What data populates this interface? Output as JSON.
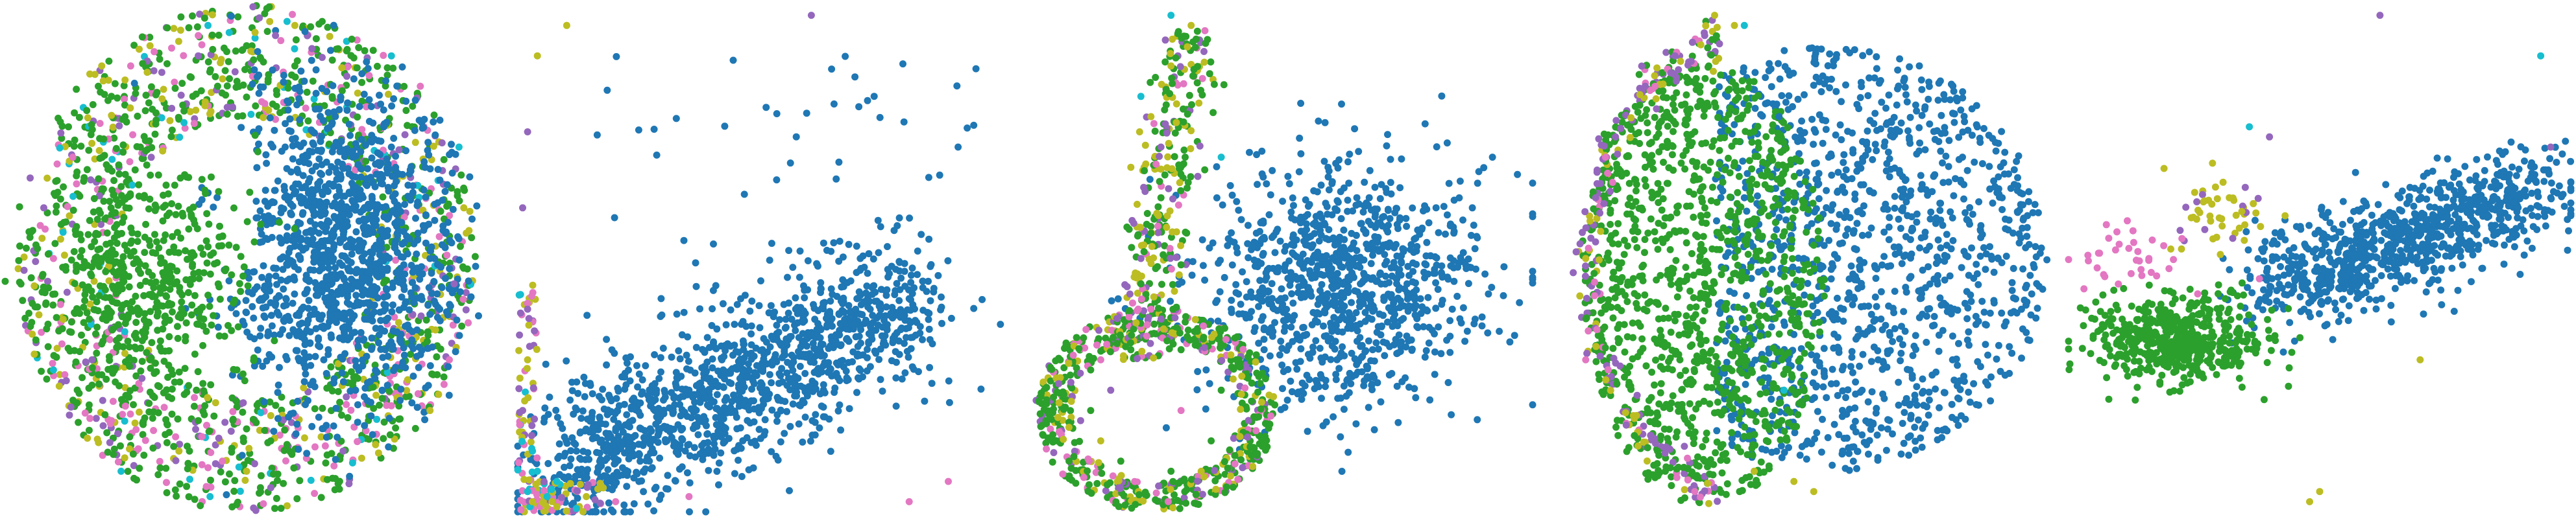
{
  "figure": {
    "background": "#ffffff",
    "panel_count": 5
  },
  "palette": {
    "blue": "#1f77b4",
    "green": "#2ca02c",
    "purple": "#9467bd",
    "pink": "#e377c2",
    "olive": "#bcbd22",
    "cyan": "#17becf"
  },
  "chart_data": [
    {
      "type": "scatter",
      "panel": 1,
      "title": "",
      "xlabel": "",
      "ylabel": "",
      "axes_visible": false,
      "grid": false,
      "legend": "none",
      "xlim": [
        0,
        100
      ],
      "ylim": [
        0,
        100
      ],
      "series": [
        {
          "color": "#1f77b4",
          "shape": "disk with two elongated vertical holes on its left side",
          "points": [
            [
              59,
              52
            ],
            [
              70,
              60
            ],
            [
              78,
              48
            ],
            [
              64,
              40
            ],
            [
              72,
              70
            ],
            [
              84,
              62
            ],
            [
              62,
              64
            ],
            [
              75,
              38
            ],
            [
              88,
              50
            ],
            [
              68,
              50
            ],
            [
              80,
              72
            ],
            [
              58,
              72
            ],
            [
              66,
              30
            ],
            [
              90,
              40
            ],
            [
              52,
              58
            ]
          ]
        },
        {
          "color": "#2ca02c",
          "shape": "ring-like annulus surrounding the blue disk",
          "points": [
            [
              20,
              50
            ],
            [
              30,
              30
            ],
            [
              28,
              72
            ],
            [
              40,
              18
            ],
            [
              44,
              84
            ],
            [
              55,
              14
            ],
            [
              25,
              60
            ],
            [
              35,
              45
            ],
            [
              48,
              28
            ],
            [
              15,
              40
            ],
            [
              22,
              82
            ],
            [
              60,
              88
            ],
            [
              38,
              66
            ],
            [
              18,
              25
            ],
            [
              50,
              92
            ]
          ]
        },
        {
          "color": "#e377c2",
          "shape": "scattered in outer ring",
          "points": [
            [
              10,
              50
            ],
            [
              22,
              18
            ],
            [
              26,
              88
            ],
            [
              45,
              10
            ],
            [
              92,
              30
            ],
            [
              40,
              94
            ],
            [
              14,
              70
            ],
            [
              86,
              84
            ]
          ]
        },
        {
          "color": "#bcbd22",
          "shape": "scattered in outer ring",
          "points": [
            [
              12,
              38
            ],
            [
              20,
              88
            ],
            [
              50,
              8
            ],
            [
              95,
              60
            ],
            [
              36,
              12
            ],
            [
              30,
              92
            ],
            [
              88,
              20
            ],
            [
              60,
              96
            ]
          ]
        },
        {
          "color": "#9467bd",
          "shape": "scattered in outer ring",
          "points": [
            [
              8,
              60
            ],
            [
              18,
              30
            ],
            [
              40,
              90
            ],
            [
              70,
              12
            ],
            [
              93,
              45
            ],
            [
              56,
              94
            ]
          ]
        },
        {
          "color": "#17becf",
          "shape": "sparse outer ring",
          "points": [
            [
              10,
              28
            ],
            [
              42,
              96
            ],
            [
              80,
              90
            ],
            [
              94,
              72
            ],
            [
              24,
              8
            ]
          ]
        }
      ]
    },
    {
      "type": "scatter",
      "panel": 2,
      "title": "",
      "xlabel": "",
      "ylabel": "",
      "axes_visible": false,
      "grid": false,
      "legend": "none",
      "xlim": [
        0,
        100
      ],
      "ylim": [
        0,
        100
      ],
      "series": [
        {
          "color": "#1f77b4",
          "shape": "diagonal band rising from lower-left to upper-right",
          "points": [
            [
              12,
              12
            ],
            [
              20,
              16
            ],
            [
              28,
              20
            ],
            [
              35,
              24
            ],
            [
              42,
              28
            ],
            [
              50,
              32
            ],
            [
              56,
              38
            ],
            [
              62,
              44
            ],
            [
              70,
              50
            ],
            [
              78,
              58
            ],
            [
              84,
              66
            ],
            [
              90,
              72
            ],
            [
              25,
              10
            ],
            [
              45,
              22
            ],
            [
              60,
              30
            ]
          ]
        },
        {
          "color": "#17becf",
          "shape": "clustered at lower-left corner",
          "points": [
            [
              2,
              4
            ],
            [
              4,
              8
            ],
            [
              6,
              3
            ],
            [
              3,
              12
            ],
            [
              8,
              6
            ]
          ]
        },
        {
          "color": "#bcbd22",
          "shape": "along bottom and left edge, few outliers at top",
          "points": [
            [
              3,
              2
            ],
            [
              8,
              1
            ],
            [
              14,
              3
            ],
            [
              2,
              30
            ],
            [
              10,
              96
            ],
            [
              4,
              90
            ]
          ]
        },
        {
          "color": "#9467bd",
          "shape": "along left edge",
          "points": [
            [
              1,
              20
            ],
            [
              2,
              40
            ],
            [
              1,
              60
            ],
            [
              2,
              75
            ],
            [
              60,
              98
            ]
          ]
        },
        {
          "color": "#e377c2",
          "shape": "along bottom edge",
          "points": [
            [
              20,
              2
            ],
            [
              35,
              3
            ],
            [
              80,
              2
            ],
            [
              88,
              6
            ]
          ]
        }
      ]
    },
    {
      "type": "scatter",
      "panel": 3,
      "title": "",
      "xlabel": "",
      "ylabel": "",
      "axes_visible": false,
      "grid": false,
      "legend": "none",
      "xlim": [
        0,
        100
      ],
      "ylim": [
        0,
        100
      ],
      "series": [
        {
          "color": "#1f77b4",
          "shape": "broad cloud extending to the right",
          "points": [
            [
              40,
              40
            ],
            [
              50,
              44
            ],
            [
              60,
              48
            ],
            [
              70,
              52
            ],
            [
              78,
              56
            ],
            [
              88,
              60
            ],
            [
              55,
              35
            ],
            [
              65,
              62
            ],
            [
              75,
              45
            ],
            [
              45,
              55
            ],
            [
              84,
              40
            ],
            [
              92,
              70
            ],
            [
              35,
              28
            ],
            [
              58,
              58
            ],
            [
              68,
              38
            ]
          ]
        },
        {
          "color": "#2ca02c",
          "shape": "ring at lower-left with a column above it",
          "points": [
            [
              12,
              20
            ],
            [
              18,
              10
            ],
            [
              28,
              8
            ],
            [
              36,
              14
            ],
            [
              38,
              24
            ],
            [
              30,
              32
            ],
            [
              20,
              32
            ],
            [
              12,
              28
            ],
            [
              22,
              45
            ],
            [
              24,
              55
            ],
            [
              26,
              62
            ]
          ]
        },
        {
          "color": "#bcbd22",
          "shape": "column and ring at lower-left",
          "points": [
            [
              20,
              68
            ],
            [
              24,
              78
            ],
            [
              28,
              88
            ],
            [
              32,
              96
            ],
            [
              14,
              14
            ],
            [
              34,
              8
            ]
          ]
        },
        {
          "color": "#9467bd",
          "shape": "along the column and ring",
          "points": [
            [
              22,
              50
            ],
            [
              26,
              72
            ],
            [
              16,
              24
            ],
            [
              10,
              18
            ]
          ]
        },
        {
          "color": "#e377c2",
          "shape": "along the column and ring",
          "points": [
            [
              24,
              40
            ],
            [
              30,
              20
            ],
            [
              14,
              30
            ]
          ]
        },
        {
          "color": "#17becf",
          "shape": "few points near top",
          "points": [
            [
              28,
              98
            ],
            [
              38,
              70
            ],
            [
              22,
              82
            ]
          ]
        }
      ]
    },
    {
      "type": "scatter",
      "panel": 4,
      "title": "",
      "xlabel": "",
      "ylabel": "",
      "axes_visible": false,
      "grid": false,
      "legend": "none",
      "xlim": [
        0,
        100
      ],
      "ylim": [
        0,
        100
      ],
      "series": [
        {
          "color": "#1f77b4",
          "shape": "large filled region occupying right and center of an oval",
          "points": [
            [
              50,
              50
            ],
            [
              60,
              55
            ],
            [
              70,
              60
            ],
            [
              80,
              58
            ],
            [
              88,
              50
            ],
            [
              75,
              40
            ],
            [
              65,
              30
            ],
            [
              55,
              70
            ],
            [
              45,
              78
            ],
            [
              38,
              62
            ],
            [
              68,
              74
            ],
            [
              82,
              70
            ],
            [
              58,
              40
            ],
            [
              48,
              35
            ],
            [
              90,
              62
            ]
          ]
        },
        {
          "color": "#2ca02c",
          "shape": "left half of the oval and outer rim",
          "points": [
            [
              10,
              40
            ],
            [
              14,
              28
            ],
            [
              20,
              18
            ],
            [
              30,
              10
            ],
            [
              40,
              8
            ],
            [
              12,
              55
            ],
            [
              18,
              68
            ],
            [
              25,
              30
            ],
            [
              30,
              45
            ],
            [
              22,
              58
            ],
            [
              35,
              22
            ],
            [
              28,
              75
            ],
            [
              16,
              80
            ],
            [
              42,
              20
            ]
          ]
        },
        {
          "color": "#9467bd",
          "shape": "upper-left arc of the oval rim",
          "points": [
            [
              8,
              62
            ],
            [
              12,
              74
            ],
            [
              18,
              84
            ],
            [
              24,
              90
            ],
            [
              30,
              94
            ]
          ]
        },
        {
          "color": "#bcbd22",
          "shape": "rim and a cluster at lower center",
          "points": [
            [
              48,
              6
            ],
            [
              52,
              4
            ],
            [
              32,
              98
            ],
            [
              36,
              96
            ],
            [
              6,
              50
            ],
            [
              40,
              8
            ]
          ]
        },
        {
          "color": "#e377c2",
          "shape": "along outer rim",
          "points": [
            [
              6,
              30
            ],
            [
              10,
              70
            ],
            [
              28,
              4
            ]
          ]
        },
        {
          "color": "#17becf",
          "shape": "few points",
          "points": [
            [
              46,
              24
            ],
            [
              38,
              96
            ]
          ]
        }
      ]
    },
    {
      "type": "scatter",
      "panel": 5,
      "title": "",
      "xlabel": "",
      "ylabel": "",
      "axes_visible": false,
      "grid": false,
      "legend": "none",
      "xlim": [
        0,
        100
      ],
      "ylim": [
        0,
        100
      ],
      "series": [
        {
          "color": "#1f77b4",
          "shape": "elongated cluster rising to the right",
          "points": [
            [
              45,
              46
            ],
            [
              52,
              50
            ],
            [
              58,
              52
            ],
            [
              64,
              55
            ],
            [
              70,
              58
            ],
            [
              76,
              60
            ],
            [
              82,
              62
            ],
            [
              88,
              64
            ],
            [
              60,
              48
            ],
            [
              72,
              52
            ],
            [
              80,
              56
            ],
            [
              54,
              44
            ],
            [
              66,
              62
            ],
            [
              86,
              58
            ],
            [
              92,
              66
            ]
          ]
        },
        {
          "color": "#2ca02c",
          "shape": "cluster at left end",
          "points": [
            [
              10,
              34
            ],
            [
              16,
              36
            ],
            [
              22,
              32
            ],
            [
              28,
              30
            ],
            [
              30,
              38
            ],
            [
              18,
              30
            ],
            [
              24,
              40
            ],
            [
              34,
              34
            ],
            [
              14,
              40
            ]
          ]
        },
        {
          "color": "#e377c2",
          "shape": "small group above the green cluster",
          "points": [
            [
              12,
              52
            ],
            [
              16,
              50
            ],
            [
              20,
              48
            ],
            [
              38,
              46
            ],
            [
              8,
              54
            ]
          ]
        },
        {
          "color": "#bcbd22",
          "shape": "small group above center and outliers",
          "points": [
            [
              30,
              58
            ],
            [
              32,
              62
            ],
            [
              34,
              56
            ],
            [
              48,
              2
            ],
            [
              50,
              4
            ],
            [
              70,
              30
            ]
          ]
        },
        {
          "color": "#9467bd",
          "shape": "few outliers",
          "points": [
            [
              62,
              98
            ],
            [
              40,
              74
            ],
            [
              96,
              72
            ]
          ]
        },
        {
          "color": "#17becf",
          "shape": "few outliers",
          "points": [
            [
              36,
              76
            ],
            [
              94,
              90
            ]
          ]
        }
      ]
    }
  ]
}
